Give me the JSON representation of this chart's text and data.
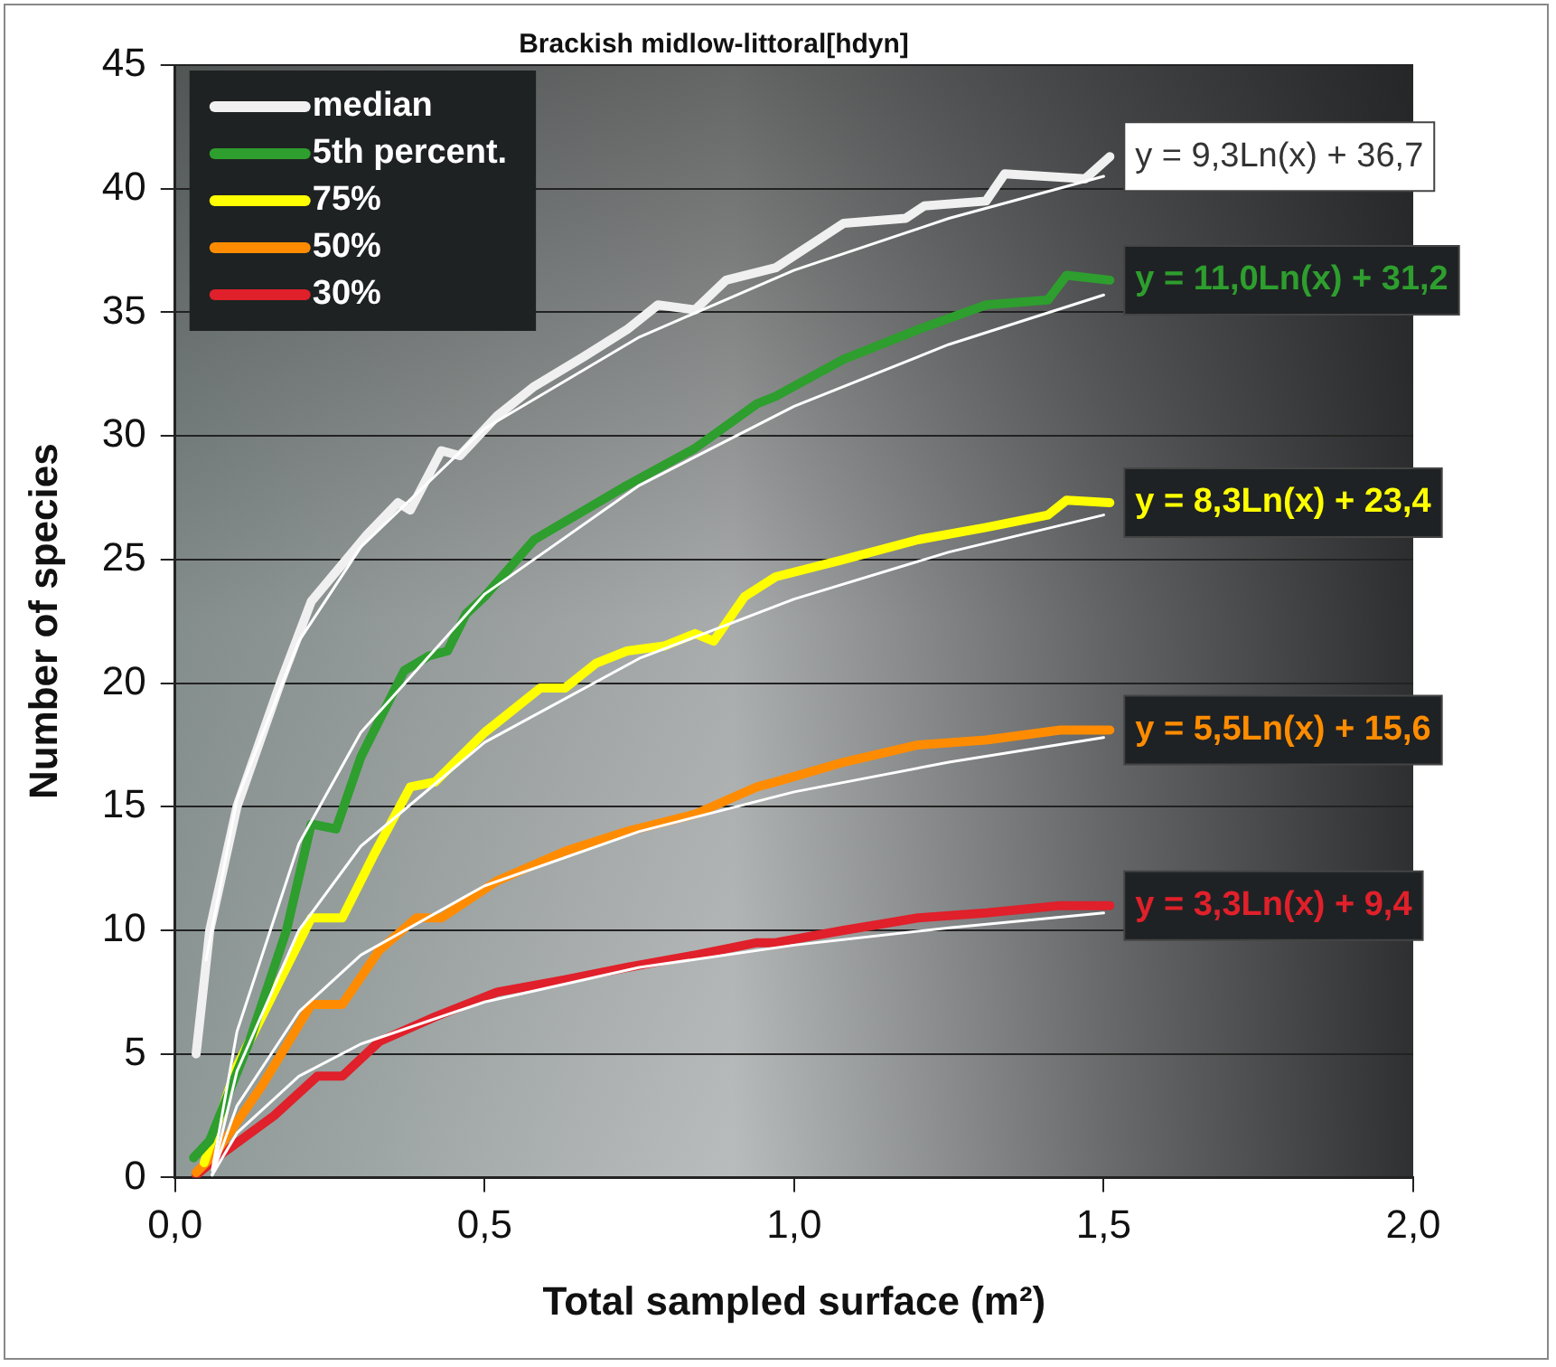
{
  "chart_data": {
    "type": "line",
    "title": "Brackish midlow-littoral[hdyn]",
    "xlabel": "Total sampled surface (m²)",
    "ylabel": "Number of species",
    "xlim": [
      0,
      2
    ],
    "xticks": [
      {
        "value": 0,
        "label": "0,0"
      },
      {
        "value": 0.5,
        "label": "0,5"
      },
      {
        "value": 1,
        "label": "1,0"
      },
      {
        "value": 1.5,
        "label": "1,5"
      },
      {
        "value": 2,
        "label": "2,0"
      }
    ],
    "ylim": [
      0,
      45
    ],
    "yticks": [
      0,
      5,
      10,
      15,
      20,
      25,
      30,
      35,
      40,
      45
    ],
    "grid": "y",
    "legend": "top left",
    "marker": "none",
    "series": [
      {
        "name": "median",
        "color": "#f0f0f0",
        "x": [
          0.034,
          0.056,
          0.1,
          0.17,
          0.22,
          0.31,
          0.36,
          0.38,
          0.43,
          0.46,
          0.52,
          0.58,
          0.66,
          0.73,
          0.78,
          0.84,
          0.89,
          0.97,
          1.08,
          1.18,
          1.21,
          1.31,
          1.34,
          1.47,
          1.51
        ],
        "values": [
          5,
          10,
          15,
          20,
          23.3,
          26,
          27.3,
          27,
          29.4,
          29.2,
          30.8,
          32,
          33.2,
          34.3,
          35.3,
          35.1,
          36.3,
          36.8,
          38.6,
          38.8,
          39.3,
          39.5,
          40.6,
          40.4,
          41.3
        ]
      },
      {
        "name": "5th percent.",
        "color": "#2e9e2e",
        "x": [
          0.03,
          0.056,
          0.12,
          0.18,
          0.22,
          0.26,
          0.3,
          0.37,
          0.41,
          0.44,
          0.47,
          0.5,
          0.58,
          0.73,
          0.84,
          0.94,
          0.97,
          1.08,
          1.2,
          1.31,
          1.41,
          1.44,
          1.51
        ],
        "values": [
          0.8,
          1.5,
          5.5,
          10,
          14.3,
          14.1,
          17,
          20.5,
          21.1,
          21.3,
          22.8,
          23.5,
          25.8,
          28,
          29.5,
          31.3,
          31.6,
          33.1,
          34.3,
          35.3,
          35.5,
          36.5,
          36.3
        ]
      },
      {
        "name": "75%",
        "color": "#ffff00",
        "x": [
          0.047,
          0.1,
          0.16,
          0.22,
          0.27,
          0.32,
          0.38,
          0.42,
          0.5,
          0.59,
          0.63,
          0.68,
          0.73,
          0.79,
          0.84,
          0.87,
          0.92,
          0.97,
          1.08,
          1.2,
          1.31,
          1.41,
          1.44,
          1.51
        ],
        "values": [
          0.6,
          4.5,
          7.5,
          10.5,
          10.5,
          13,
          15.8,
          16,
          18,
          19.8,
          19.8,
          20.8,
          21.3,
          21.5,
          22,
          21.7,
          23.5,
          24.3,
          25,
          25.8,
          26.3,
          26.8,
          27.4,
          27.3
        ]
      },
      {
        "name": "50%",
        "color": "#ff8c00",
        "x": [
          0.034,
          0.066,
          0.14,
          0.22,
          0.27,
          0.33,
          0.39,
          0.43,
          0.52,
          0.63,
          0.73,
          0.84,
          0.94,
          0.97,
          1.08,
          1.2,
          1.31,
          1.43,
          1.51
        ],
        "values": [
          0.2,
          1,
          3.7,
          7,
          7,
          9.2,
          10.5,
          10.5,
          12,
          13.2,
          14,
          14.7,
          15.8,
          16,
          16.8,
          17.5,
          17.7,
          18.1,
          18.1
        ]
      },
      {
        "name": "30%",
        "color": "#e0202a",
        "x": [
          0.034,
          0.078,
          0.16,
          0.23,
          0.27,
          0.33,
          0.42,
          0.52,
          0.63,
          0.73,
          0.84,
          0.94,
          0.97,
          1.08,
          1.2,
          1.31,
          1.43,
          1.51
        ],
        "values": [
          0.1,
          1,
          2.5,
          4.1,
          4.1,
          5.5,
          6.5,
          7.5,
          8,
          8.5,
          9,
          9.5,
          9.5,
          10,
          10.5,
          10.7,
          11,
          11
        ]
      },
      {
        "type": "line",
        "color": "#ffffff",
        "x": [
          0.05,
          0.1,
          0.2,
          0.3,
          0.5,
          0.75,
          1,
          1.25,
          1.5
        ],
        "values": [
          8.8,
          15.3,
          21.7,
          25.5,
          30.3,
          34,
          36.7,
          38.8,
          40.5
        ]
      },
      {
        "type": "line",
        "color": "#ffffff",
        "x": [
          0.06,
          0.1,
          0.2,
          0.3,
          0.5,
          0.75,
          1,
          1.25,
          1.5
        ],
        "values": [
          0.3,
          5.9,
          13.5,
          18,
          23.6,
          28,
          31.2,
          33.7,
          35.7
        ]
      },
      {
        "type": "line",
        "color": "#ffffff",
        "x": [
          0.06,
          0.1,
          0.2,
          0.3,
          0.5,
          0.75,
          1,
          1.25,
          1.5
        ],
        "values": [
          0.1,
          4.3,
          10,
          13.4,
          17.6,
          21,
          23.4,
          25.3,
          26.8
        ]
      },
      {
        "type": "line",
        "color": "#ffffff",
        "x": [
          0.06,
          0.1,
          0.2,
          0.3,
          0.5,
          0.75,
          1,
          1.25,
          1.5
        ],
        "values": [
          0.1,
          2.9,
          6.7,
          9,
          11.8,
          14,
          15.6,
          16.8,
          17.8
        ]
      },
      {
        "type": "line",
        "color": "#ffffff",
        "x": [
          0.06,
          0.1,
          0.2,
          0.3,
          0.5,
          0.75,
          1,
          1.25,
          1.5
        ],
        "values": [
          0.1,
          1.8,
          4.1,
          5.4,
          7.1,
          8.5,
          9.4,
          10.1,
          10.7
        ]
      }
    ],
    "annotations": [
      "y = 9,3Ln(x) + 36,7",
      "y = 11,0Ln(x) + 31,2",
      "y = 8,3Ln(x) + 23,4",
      "y = 5,5Ln(x) + 15,6",
      "y = 3,3Ln(x) + 9,4"
    ]
  }
}
